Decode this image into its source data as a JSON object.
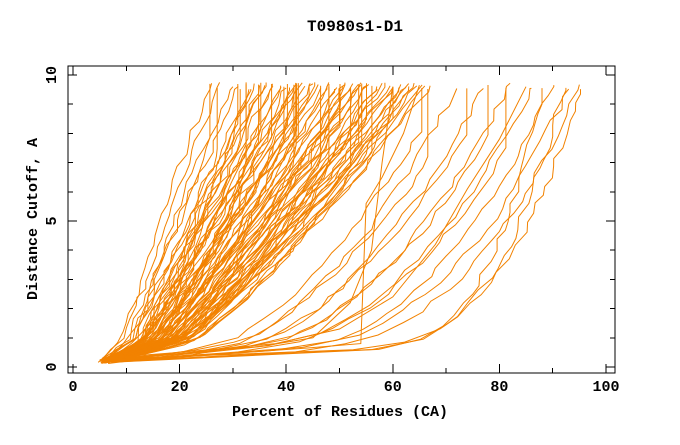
{
  "chart_data": {
    "type": "line",
    "title": "T0980s1-D1",
    "xlabel": "Percent of Residues (CA)",
    "ylabel": "Distance Cutoff, A",
    "xlim": [
      0,
      100
    ],
    "ylim": [
      0,
      10
    ],
    "x_major_ticks": [
      0,
      20,
      40,
      60,
      80,
      100
    ],
    "x_minor_ticks": [
      10,
      30,
      50,
      70,
      90
    ],
    "y_major_ticks": [
      0,
      5,
      10
    ],
    "y_minor_ticks": [
      1,
      2,
      3,
      4,
      6,
      7,
      8,
      9
    ],
    "grid": false,
    "legend": "none",
    "line_color": "#f28200",
    "frame_color": "#000000",
    "curve_start": {
      "x_percent": 4,
      "y_cutoff": 0.2
    },
    "curve_top_cutoff": 9.7,
    "curves_param": [
      [
        26,
        1.1,
        4.0,
        0
      ],
      [
        27.5,
        1.05,
        4.2,
        0
      ],
      [
        29,
        1.0,
        4.5,
        1
      ],
      [
        30,
        0.95,
        4.0,
        0
      ],
      [
        31,
        1.02,
        4.8,
        0
      ],
      [
        32,
        0.9,
        4.3,
        1
      ],
      [
        33,
        0.97,
        5.0,
        0
      ],
      [
        34,
        0.88,
        4.6,
        0
      ],
      [
        34.5,
        1.05,
        4.1,
        1
      ],
      [
        35,
        0.92,
        5.2,
        0
      ],
      [
        36,
        0.85,
        4.4,
        0
      ],
      [
        36.5,
        1.0,
        4.9,
        1
      ],
      [
        37,
        0.9,
        4.2,
        0
      ],
      [
        37.5,
        0.82,
        5.5,
        0
      ],
      [
        38,
        0.95,
        4.7,
        1
      ],
      [
        38.5,
        0.88,
        4.3,
        0
      ],
      [
        39,
        1.02,
        5.0,
        0
      ],
      [
        39.5,
        0.85,
        4.5,
        1
      ],
      [
        40,
        0.92,
        4.1,
        0
      ],
      [
        40.5,
        0.8,
        5.3,
        0
      ],
      [
        41,
        0.96,
        4.6,
        1
      ],
      [
        41.5,
        0.88,
        4.2,
        0
      ],
      [
        42,
        0.84,
        5.1,
        0
      ],
      [
        42.5,
        0.98,
        4.4,
        1
      ],
      [
        43,
        0.9,
        4.8,
        0
      ],
      [
        43.5,
        0.82,
        4.3,
        0
      ],
      [
        44,
        0.94,
        5.4,
        1
      ],
      [
        44.5,
        0.87,
        4.5,
        0
      ],
      [
        45,
        0.8,
        4.0,
        0
      ],
      [
        45.5,
        0.96,
        5.0,
        1
      ],
      [
        46,
        0.89,
        4.4,
        0
      ],
      [
        46.5,
        0.83,
        4.7,
        0
      ],
      [
        47,
        0.95,
        4.2,
        1
      ],
      [
        47.5,
        0.86,
        5.2,
        0
      ],
      [
        48,
        0.8,
        4.5,
        0
      ],
      [
        48.5,
        0.93,
        4.8,
        1
      ],
      [
        49,
        0.87,
        4.3,
        0
      ],
      [
        49.5,
        0.81,
        5.0,
        0
      ],
      [
        50,
        0.94,
        4.6,
        1
      ],
      [
        50.5,
        0.86,
        4.1,
        0
      ],
      [
        51,
        0.79,
        5.3,
        0
      ],
      [
        51.5,
        0.92,
        4.7,
        1
      ],
      [
        52,
        0.85,
        4.4,
        0
      ],
      [
        52.5,
        0.8,
        4.9,
        0
      ],
      [
        53,
        0.93,
        4.2,
        1
      ],
      [
        53.5,
        0.86,
        5.1,
        0
      ],
      [
        54,
        0.79,
        4.5,
        0
      ],
      [
        54.5,
        0.91,
        4.8,
        1
      ],
      [
        55,
        0.84,
        4.3,
        0
      ],
      [
        55.5,
        0.78,
        5.2,
        0
      ],
      [
        56,
        0.9,
        4.6,
        1
      ],
      [
        56.5,
        0.84,
        4.1,
        0
      ],
      [
        57,
        0.78,
        4.9,
        0
      ],
      [
        57.5,
        0.9,
        4.4,
        1
      ],
      [
        58,
        0.83,
        5.0,
        0
      ],
      [
        58.5,
        0.77,
        4.6,
        0
      ],
      [
        59,
        0.89,
        4.2,
        1
      ],
      [
        59.5,
        0.83,
        4.8,
        0
      ],
      [
        60,
        0.77,
        4.4,
        0
      ],
      [
        60.5,
        0.88,
        5.1,
        1
      ],
      [
        61,
        0.82,
        4.5,
        0
      ],
      [
        61.5,
        0.76,
        4.2,
        0
      ],
      [
        62,
        0.88,
        4.8,
        1
      ],
      [
        62.5,
        0.81,
        4.4,
        0
      ],
      [
        63,
        0.76,
        5.0,
        0
      ],
      [
        63.5,
        0.87,
        4.6,
        1
      ],
      [
        64,
        0.81,
        4.3,
        0
      ],
      [
        64.5,
        0.75,
        4.9,
        0
      ],
      [
        65,
        0.86,
        4.5,
        1
      ],
      [
        65.5,
        0.8,
        4.2,
        0
      ],
      [
        66,
        0.75,
        4.7,
        0
      ],
      [
        66.5,
        0.85,
        4.4,
        1
      ],
      [
        67,
        0.79,
        5.0,
        0
      ],
      [
        33,
        0.75,
        5.8,
        0
      ],
      [
        36,
        1.1,
        5.5,
        0
      ],
      [
        39,
        0.72,
        6.0,
        1
      ],
      [
        42,
        1.08,
        5.6,
        0
      ],
      [
        45,
        0.73,
        5.9,
        0
      ],
      [
        48,
        1.05,
        5.4,
        1
      ],
      [
        51,
        0.72,
        6.1,
        0
      ],
      [
        54,
        1.02,
        5.7,
        0
      ],
      [
        57,
        0.71,
        5.5,
        1
      ],
      [
        60,
        1.0,
        5.9,
        0
      ],
      [
        63,
        0.7,
        5.6,
        0
      ],
      [
        66,
        0.98,
        6.0,
        1
      ],
      [
        70,
        0.55,
        4.5,
        1
      ],
      [
        72,
        0.5,
        5.0,
        0
      ],
      [
        75,
        0.52,
        4.2,
        1
      ],
      [
        77,
        0.46,
        4.8,
        0
      ],
      [
        79,
        0.48,
        4.4,
        1
      ],
      [
        82,
        0.42,
        5.2,
        0
      ],
      [
        84,
        0.44,
        4.6,
        1
      ],
      [
        86,
        0.38,
        4.3,
        0
      ],
      [
        88,
        0.4,
        5.0,
        1
      ],
      [
        90,
        0.34,
        4.5,
        0
      ],
      [
        93,
        0.33,
        4.8,
        0
      ],
      [
        95,
        0.3,
        4.2,
        0
      ],
      [
        88,
        0.16,
        5.5,
        0
      ],
      [
        92,
        0.18,
        5.0,
        0
      ],
      [
        95,
        0.2,
        4.6,
        0
      ]
    ],
    "curves_explicit": [
      [
        [
          5,
          0.2
        ],
        [
          14,
          0.3
        ],
        [
          24,
          0.42
        ],
        [
          34,
          0.52
        ],
        [
          44,
          0.65
        ],
        [
          54,
          0.8
        ],
        [
          55,
          5.6
        ],
        [
          58,
          6.5
        ],
        [
          62,
          8.0
        ],
        [
          65,
          9.65
        ]
      ],
      [
        [
          5,
          0.25
        ],
        [
          15,
          0.4
        ],
        [
          25,
          0.5
        ],
        [
          35,
          0.7
        ],
        [
          45,
          1.0
        ],
        [
          52,
          2.2
        ],
        [
          56,
          4.0
        ],
        [
          58,
          7.0
        ],
        [
          60,
          9.6
        ]
      ],
      [
        [
          5.5,
          0.3
        ],
        [
          20,
          0.5
        ],
        [
          38,
          0.8
        ],
        [
          50,
          1.3
        ],
        [
          60,
          2.4
        ],
        [
          68,
          4.2
        ],
        [
          74,
          6.1
        ],
        [
          80,
          7.8
        ],
        [
          85,
          9.6
        ]
      ]
    ]
  }
}
